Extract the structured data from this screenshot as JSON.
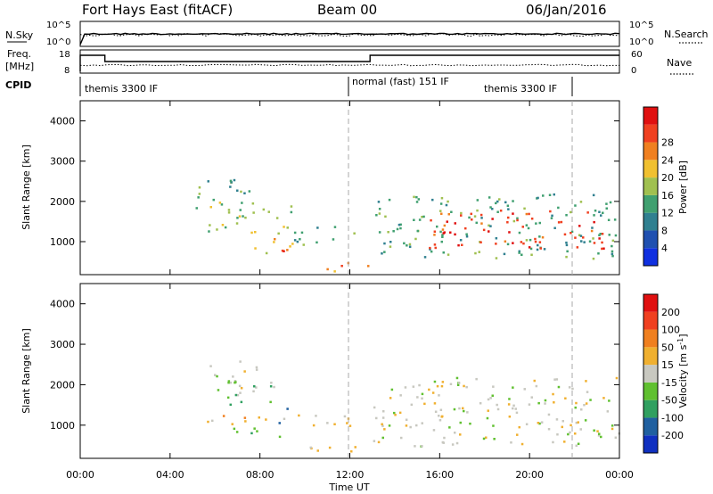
{
  "header": {
    "station": "Fort Hays East (fitACF)",
    "beam": "Beam 00",
    "date": "06/Jan/2016"
  },
  "noise_panel": {
    "left_label": "N.Sky",
    "right_label": "N.Search",
    "ticks_left": [
      "10^5",
      "10^0"
    ],
    "ticks_right": [
      "10^5",
      "10^0"
    ]
  },
  "freq_panel": {
    "left_label_1": "Freq.",
    "left_label_2": "[MHz]",
    "right_label": "Nave",
    "ticks_left": [
      "18",
      "8"
    ],
    "ticks_right": [
      "60",
      "0"
    ]
  },
  "cpid_panel": {
    "label": "CPID",
    "modes": [
      {
        "name": "themis 3300 IF",
        "start": 0,
        "end": 12
      },
      {
        "name": "normal (fast) 151 IF",
        "start": 12,
        "end": 22
      },
      {
        "name": "themis 3300 IF",
        "start": 16,
        "end": 22
      }
    ]
  },
  "axes": {
    "xlabel": "Time UT",
    "x_ticks": [
      "00:00",
      "04:00",
      "08:00",
      "12:00",
      "16:00",
      "20:00",
      "00:00"
    ],
    "ylabel": "Slant Range [km]",
    "y_ticks": [
      "1000",
      "2000",
      "3000",
      "4000"
    ]
  },
  "colorbars": {
    "power": {
      "label": "Power [dB]",
      "ticks": [
        "4",
        "8",
        "12",
        "16",
        "20",
        "24",
        "28"
      ],
      "colors": [
        "#1030e0",
        "#2050b0",
        "#308090",
        "#40a070",
        "#a0c050",
        "#f0c030",
        "#f08020",
        "#f04020",
        "#e01010"
      ]
    },
    "velocity": {
      "label": "Velocity [m s",
      "label_exp": "-1",
      "label_end": "]",
      "ticks": [
        "200",
        "100",
        "50",
        "15",
        "-15",
        "-50",
        "-100",
        "-200"
      ],
      "colors": [
        "#1030c0",
        "#2060a0",
        "#30a060",
        "#60c030",
        "#c8c8c0",
        "#f0b030",
        "#f08020",
        "#f04020",
        "#e01010"
      ]
    }
  },
  "chart_data": {
    "type": "heatmap",
    "x_range_hours": [
      0,
      24
    ],
    "y_range_km": [
      180,
      4500
    ],
    "power_blobs": [
      {
        "t0": 5.0,
        "t1": 7.5,
        "r0": 1800,
        "r1": 2600,
        "level": 3
      },
      {
        "t0": 5.5,
        "t1": 9.5,
        "r0": 1200,
        "r1": 2000,
        "level": 4
      },
      {
        "t0": 7.5,
        "t1": 10.0,
        "r0": 700,
        "r1": 1100,
        "level": 5
      },
      {
        "t0": 8.5,
        "t1": 9.5,
        "r0": 750,
        "r1": 950,
        "level": 7
      },
      {
        "t0": 9.5,
        "t1": 12.5,
        "r0": 1000,
        "r1": 1400,
        "level": 3
      },
      {
        "t0": 10.5,
        "t1": 13.0,
        "r0": 250,
        "r1": 500,
        "level": 6
      },
      {
        "t0": 13.0,
        "t1": 24.0,
        "r0": 600,
        "r1": 2200,
        "level": 3
      },
      {
        "t0": 15.5,
        "t1": 23.5,
        "r0": 800,
        "r1": 1800,
        "level": 7
      },
      {
        "t0": 1.0,
        "t1": 1.2,
        "r0": 2100,
        "r1": 2300,
        "level": 6
      }
    ],
    "velocity_blobs": [
      {
        "t0": 5.5,
        "t1": 8.0,
        "r0": 1800,
        "r1": 2600,
        "cls": 4
      },
      {
        "t0": 6.5,
        "t1": 9.0,
        "r0": 1500,
        "r1": 2100,
        "cls": 3
      },
      {
        "t0": 6.5,
        "t1": 9.0,
        "r0": 700,
        "r1": 1000,
        "cls": 3
      },
      {
        "t0": 8.8,
        "t1": 9.4,
        "r0": 1000,
        "r1": 1500,
        "cls": 0
      },
      {
        "t0": 5.0,
        "t1": 12.0,
        "r0": 1000,
        "r1": 1300,
        "cls": 5
      },
      {
        "t0": 10.0,
        "t1": 13.0,
        "r0": 250,
        "r1": 500,
        "cls": 4
      },
      {
        "t0": 13.0,
        "t1": 24.0,
        "r0": 500,
        "r1": 2200,
        "cls": 4
      },
      {
        "t0": 1.0,
        "t1": 1.2,
        "r0": 2100,
        "r1": 2300,
        "cls": 8
      }
    ]
  }
}
